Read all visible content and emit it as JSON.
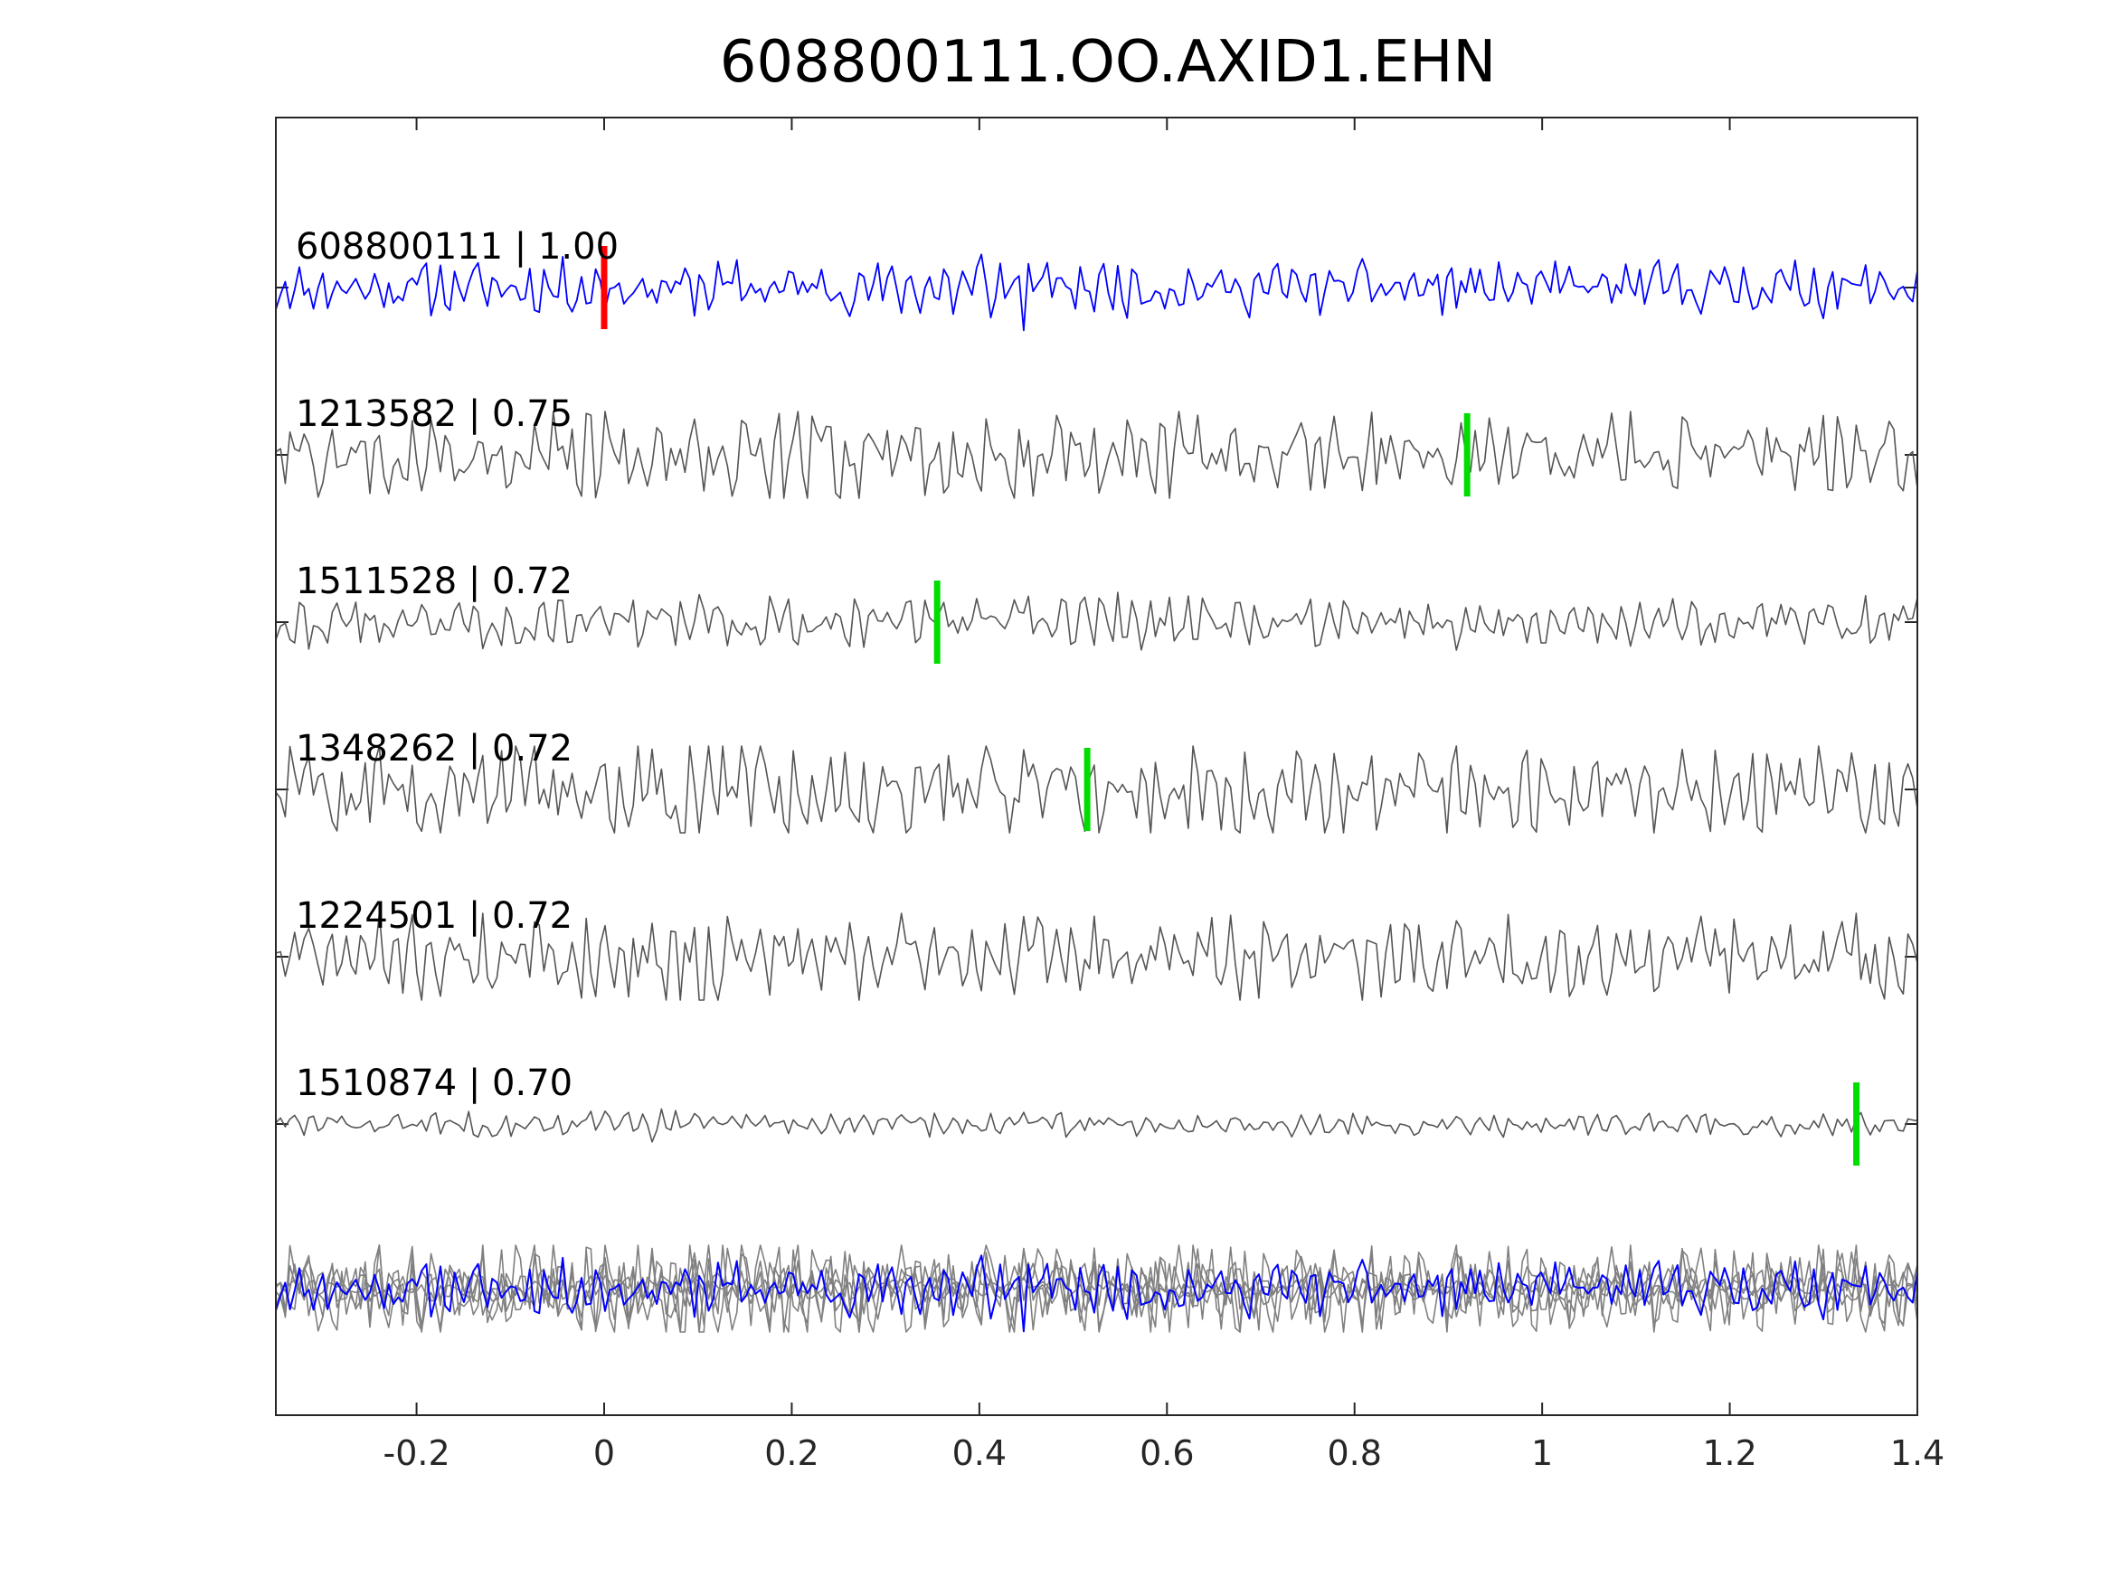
{
  "chart_data": {
    "type": "line",
    "title": "608800111.OO.AXID1.EHN",
    "xlabel": "",
    "ylabel": "",
    "xlim": [
      -0.35,
      1.4
    ],
    "xticks": [
      -0.2,
      0,
      0.2,
      0.4,
      0.6,
      0.8,
      1,
      1.2,
      1.4
    ],
    "xtick_labels": [
      "-0.2",
      "0",
      "0.2",
      "0.4",
      "0.6",
      "0.8",
      "1",
      "1.2",
      "1.4"
    ],
    "grid": false,
    "colors": {
      "template": "#0000ff",
      "match": "#555555",
      "overlay": "#808080",
      "reference_pick": "#ff0000",
      "phase_pick": "#00dd00",
      "axes": "#262626"
    },
    "series": [
      {
        "name": "608800111 | 1.00",
        "label": "608800111 | 1.00",
        "role": "template",
        "pick_time": 0.0,
        "pick_color": "#ff0000",
        "seed": 11,
        "amplitude": 0.55,
        "burst_at": 0.42
      },
      {
        "name": "1213582 | 0.75",
        "label": "1213582 | 0.75",
        "role": "match",
        "pick_time": 0.92,
        "pick_color": "#00dd00",
        "seed": 27,
        "amplitude": 0.9,
        "burst_at": 0.2
      },
      {
        "name": "1511528 | 0.72",
        "label": "1511528 | 0.72",
        "role": "match",
        "pick_time": 0.355,
        "pick_color": "#00dd00",
        "seed": 43,
        "amplitude": 0.5,
        "burst_at": 0.52
      },
      {
        "name": "1348262 | 0.72",
        "label": "1348262 | 0.72",
        "role": "match",
        "pick_time": 0.515,
        "pick_color": "#00dd00",
        "seed": 59,
        "amplitude": 0.95,
        "burst_at": 0.08
      },
      {
        "name": "1224501 | 0.72",
        "label": "1224501 | 0.72",
        "role": "match",
        "pick_time": null,
        "pick_color": "#00dd00",
        "seed": 71,
        "amplitude": 0.85,
        "burst_at": 0.08
      },
      {
        "name": "1510874 | 0.70",
        "label": "1510874 | 0.70",
        "role": "match",
        "pick_time": 1.335,
        "pick_color": "#00dd00",
        "seed": 83,
        "amplitude": 0.25,
        "burst_at": 0.04
      }
    ],
    "samples": 350,
    "stack_overlay": true
  }
}
